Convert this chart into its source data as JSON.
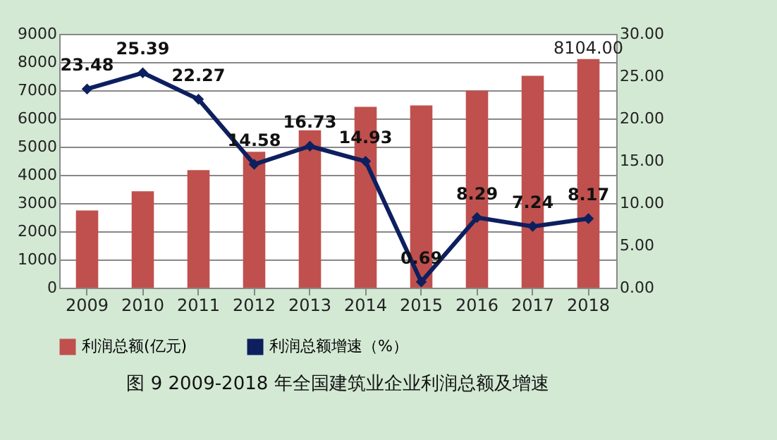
{
  "chart_data": {
    "type": "bar",
    "title": "图 9 2009-2018 年全国建筑业企业利润总额及增速",
    "categories": [
      "2009",
      "2010",
      "2011",
      "2012",
      "2013",
      "2014",
      "2015",
      "2016",
      "2017",
      "2018"
    ],
    "series": [
      {
        "name": "利润总额(亿元)",
        "color": "#c0504d",
        "values": [
          2740,
          3420,
          4170,
          4820,
          5580,
          6410,
          6460,
          6990,
          7510,
          8104
        ],
        "value_labels": [
          null,
          null,
          null,
          null,
          null,
          null,
          null,
          null,
          null,
          "8104.00"
        ]
      },
      {
        "name": "利润总额增速（%）",
        "type": "line",
        "axis": "y2",
        "color": "#0d1f5e",
        "marker": "diamond",
        "values": [
          23.48,
          25.39,
          22.27,
          14.58,
          16.73,
          14.93,
          0.69,
          8.29,
          7.24,
          8.17
        ],
        "value_labels": [
          "23.48",
          "25.39",
          "22.27",
          "14.58",
          "16.73",
          "14.93",
          "0.69",
          "8.29",
          "7.24",
          "8.17"
        ]
      }
    ],
    "ylim": [
      0,
      9000
    ],
    "yticks": [
      0,
      1000,
      2000,
      3000,
      4000,
      5000,
      6000,
      7000,
      8000,
      9000
    ],
    "y2lim": [
      0,
      30
    ],
    "y2ticks": [
      {
        "value": 0,
        "label": "0.00"
      },
      {
        "value": 5,
        "label": "5.00"
      },
      {
        "value": 10,
        "label": "10.00"
      },
      {
        "value": 15,
        "label": "15.00"
      },
      {
        "value": 20,
        "label": "20.00"
      },
      {
        "value": 25,
        "label": "25.00"
      },
      {
        "value": 30,
        "label": "30.00"
      }
    ],
    "grid": "y",
    "legend": "bottom"
  }
}
